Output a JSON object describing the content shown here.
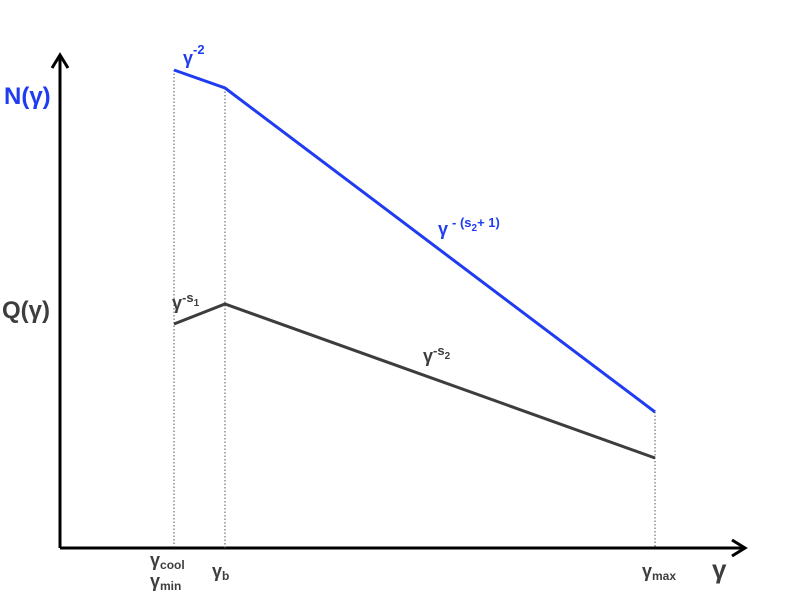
{
  "axes": {
    "y_labels": [
      "N(γ)",
      "Q(γ)"
    ],
    "x_label": "γ"
  },
  "ticks": [
    {
      "symbol": "γ",
      "sub": "cool"
    },
    {
      "symbol": "γ",
      "sub": "min"
    },
    {
      "symbol": "γ",
      "sub": "b"
    },
    {
      "symbol": "γ",
      "sub": "max"
    }
  ],
  "n_labels": [
    {
      "base": "γ",
      "sup": "-2"
    },
    {
      "base": "γ",
      "sup": "- (s",
      "sup_sub": "2",
      "sup_tail": "+ 1)"
    }
  ],
  "q_labels": [
    {
      "base": "γ",
      "sup": "-s",
      "sup_sub": "1"
    },
    {
      "base": "γ",
      "sup": "-s",
      "sup_sub": "2"
    }
  ]
}
